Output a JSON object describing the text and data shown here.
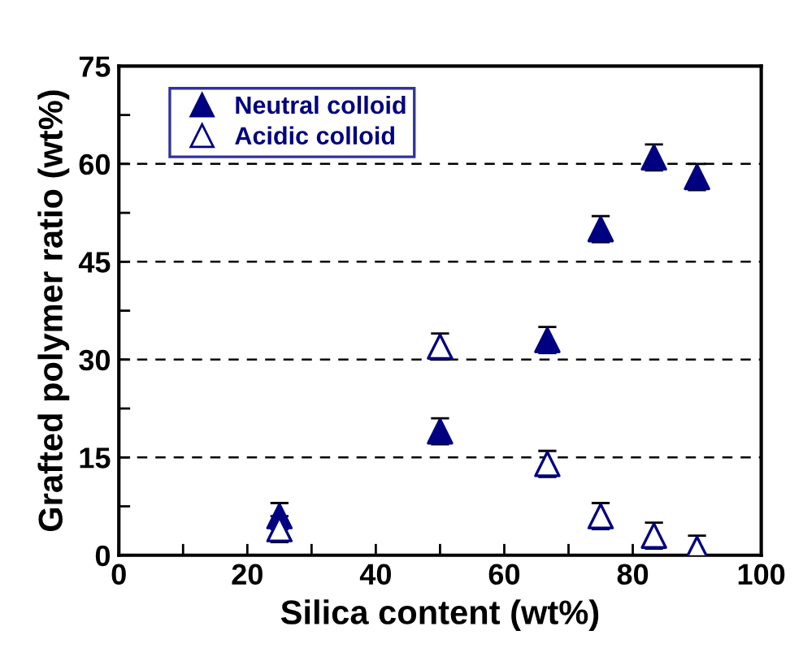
{
  "chart_data": {
    "type": "scatter",
    "xlabel": "Silica content (wt%)",
    "ylabel": "Grafted polymer ratio (wt%)",
    "xlim": [
      0,
      100
    ],
    "ylim": [
      0,
      75
    ],
    "xticks": [
      0,
      {
        "value": 10,
        "label": null
      },
      20,
      {
        "value": 30,
        "label": null
      },
      40,
      {
        "value": 50,
        "label": null
      },
      60,
      {
        "value": 70,
        "label": null
      },
      80,
      {
        "value": 90,
        "label": null
      },
      100
    ],
    "yticks": [
      0,
      {
        "value": 7.5,
        "label": null
      },
      15,
      {
        "value": 22.5,
        "label": null
      },
      30,
      {
        "value": 37.5,
        "label": null
      },
      45,
      {
        "value": 52.5,
        "label": null
      },
      60,
      {
        "value": 67.5,
        "label": null
      },
      75
    ],
    "grid": "y",
    "legend": "top left",
    "marker": "triangle",
    "series": [
      {
        "name": "Neutral colloid",
        "color": "#000080",
        "x": [
          25,
          50,
          66.7,
          75,
          83.3,
          90
        ],
        "values": [
          6,
          19,
          33,
          50,
          61,
          58
        ],
        "errors": [
          2,
          2,
          2,
          2,
          2,
          2
        ]
      },
      {
        "name": "Acidic colloid",
        "color": "#000080",
        "x": [
          25,
          50,
          66.7,
          75,
          83.3,
          90
        ],
        "values": [
          4,
          32,
          14,
          6,
          3,
          1
        ],
        "errors": [
          2,
          2,
          2,
          2,
          2,
          2
        ]
      }
    ]
  }
}
